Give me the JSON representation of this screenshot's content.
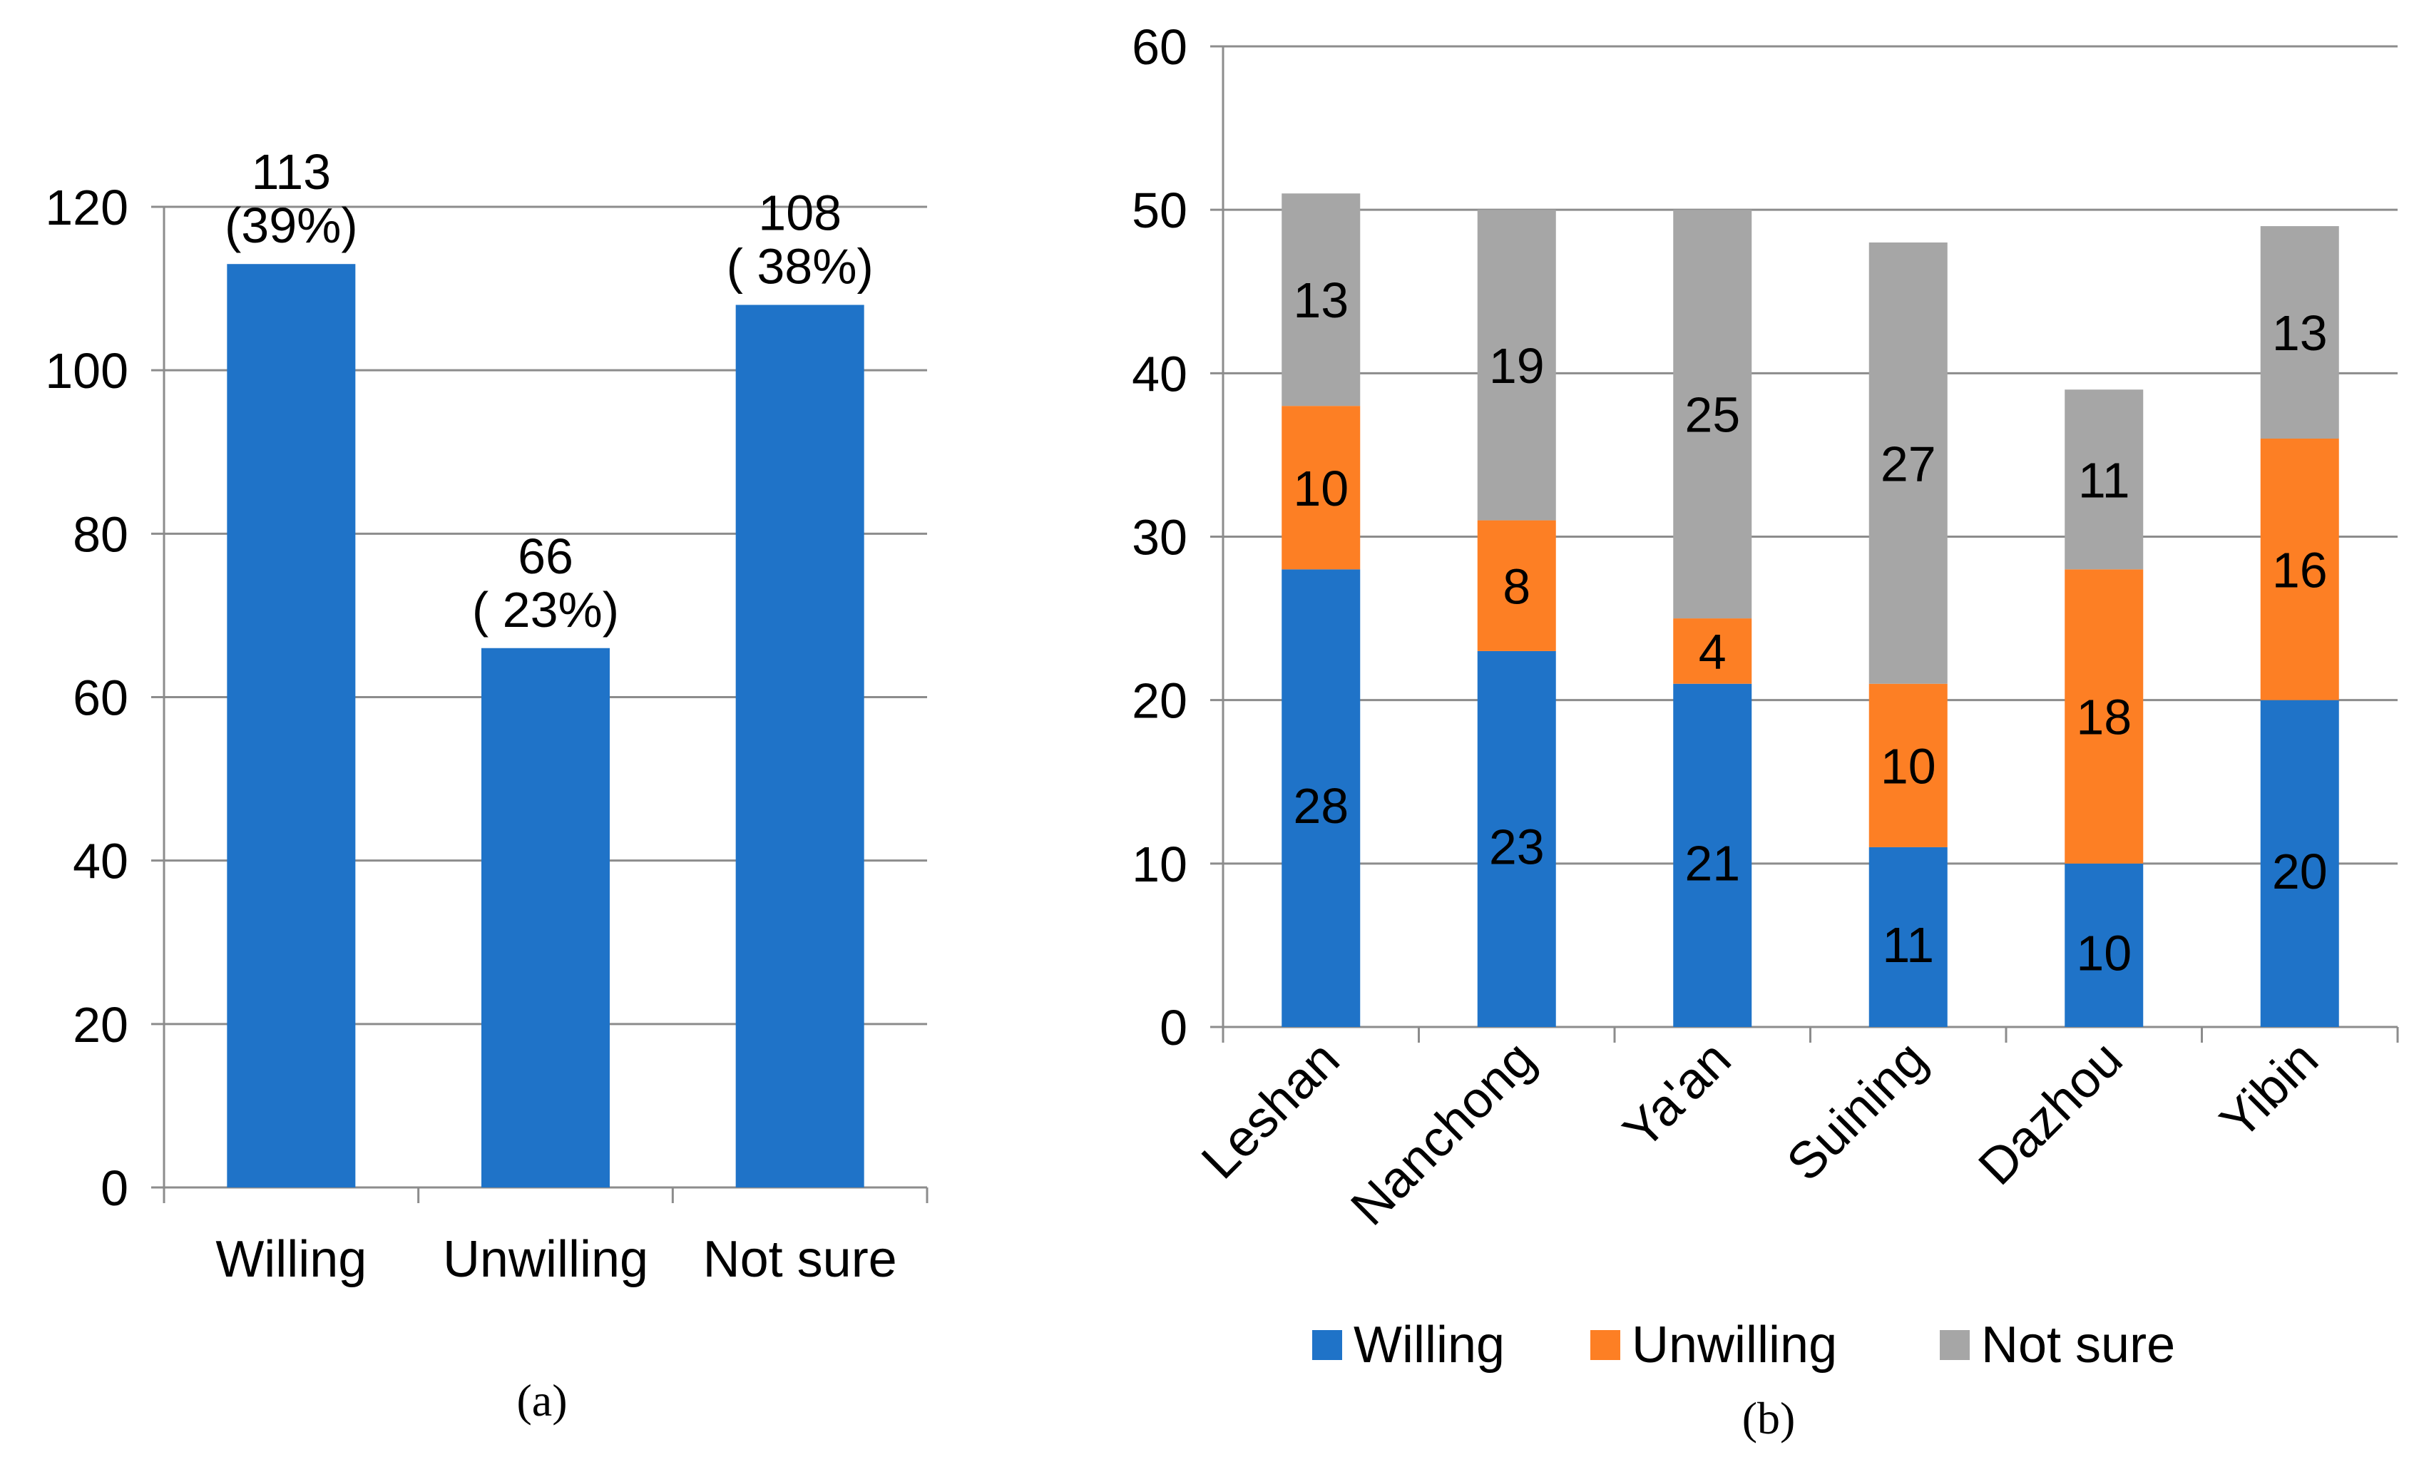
{
  "chart_data": [
    {
      "type": "bar",
      "panel_label": "a",
      "categories": [
        "Willing",
        "Unwilling",
        "Not sure"
      ],
      "values": [
        113,
        66,
        108
      ],
      "data_labels": [
        [
          "113",
          "(39%)"
        ],
        [
          "66",
          "( 23%)"
        ],
        [
          "108",
          "( 38%)"
        ]
      ],
      "ylim": [
        0,
        120
      ],
      "yticks": [
        0,
        20,
        40,
        60,
        80,
        100,
        120
      ],
      "bar_color": "#1F73C8",
      "grid": true
    },
    {
      "type": "stacked_bar",
      "panel_label": "b",
      "categories": [
        "Leshan",
        "Nanchong",
        "Ya'an",
        "Suining",
        "Dazhou",
        "Yibin"
      ],
      "series": [
        {
          "name": "Willing",
          "color": "#1F73C8",
          "values": [
            28,
            23,
            21,
            11,
            10,
            20
          ]
        },
        {
          "name": "Unwilling",
          "color": "#FD7F24",
          "values": [
            10,
            8,
            4,
            10,
            18,
            16
          ]
        },
        {
          "name": "Not sure",
          "color": "#A6A6A6",
          "values": [
            13,
            19,
            25,
            27,
            11,
            13
          ]
        }
      ],
      "ylim": [
        0,
        60
      ],
      "yticks": [
        0,
        10,
        20,
        30,
        40,
        50,
        60
      ],
      "legend_position": "bottom",
      "grid": true
    }
  ]
}
